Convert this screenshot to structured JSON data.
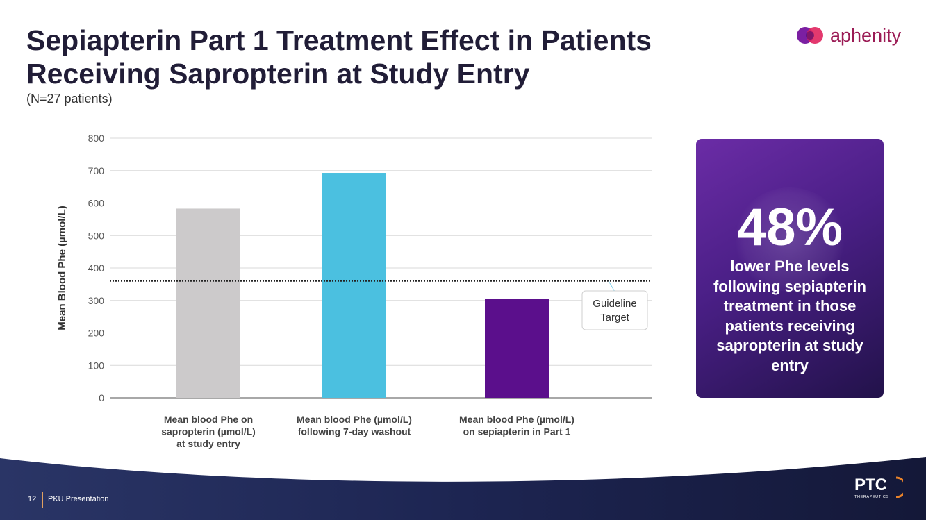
{
  "slide": {
    "title": "Sepiapterin Part 1 Treatment Effect in Patients Receiving Sapropterin at Study Entry",
    "subtitle": "(N=27 patients)",
    "page_number": "12",
    "footer_label": "PKU Presentation"
  },
  "brand": {
    "name": "aphenity"
  },
  "ptc_logo": {
    "name": "PTC",
    "sub": "THERAPEUTICS"
  },
  "callout": {
    "percent": "48%",
    "text": "lower Phe levels following sepiapterin treatment in those patients receiving sapropterin at study entry"
  },
  "colors": {
    "bar1": "#cccacb",
    "bar2": "#4bc0e0",
    "bar3": "#5b0f8c",
    "title": "#211d37",
    "brand": "#9b1b55"
  },
  "chart_data": {
    "type": "bar",
    "title": "",
    "ylabel": "Mean Blood Phe (µmol/L)",
    "xlabel": "",
    "ylim": [
      0,
      800
    ],
    "yticks": [
      0,
      100,
      200,
      300,
      400,
      500,
      600,
      700,
      800
    ],
    "grid": true,
    "categories": [
      [
        "Mean blood Phe on",
        "sapropterin (µmol/L)",
        "at study entry"
      ],
      [
        "Mean blood Phe (µmol/L)",
        "following 7-day washout"
      ],
      [
        "Mean blood Phe (µmol/L)",
        "on sepiapterin in Part 1"
      ]
    ],
    "values": [
      583,
      693,
      305
    ],
    "reference_line": {
      "value": 360,
      "label": [
        "Guideline",
        "Target"
      ],
      "style": "dotted"
    }
  }
}
